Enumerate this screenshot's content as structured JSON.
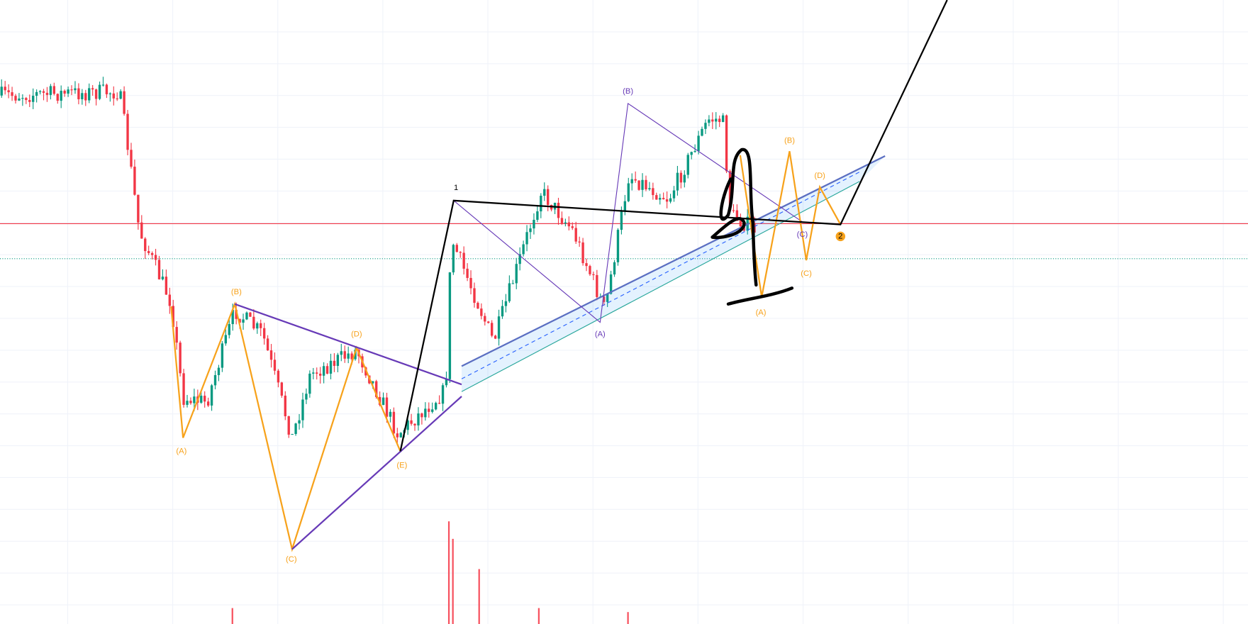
{
  "labels": {
    "left_wave": [
      "(A)",
      "(B)",
      "(C)",
      "(D)",
      "(E)"
    ],
    "middle_wave": [
      "(A)",
      "(B)",
      "(C)"
    ],
    "right_wave": [
      "(A)",
      "(B)",
      "(C)",
      "(D)"
    ],
    "impulse": [
      "1",
      "2"
    ]
  }
}
